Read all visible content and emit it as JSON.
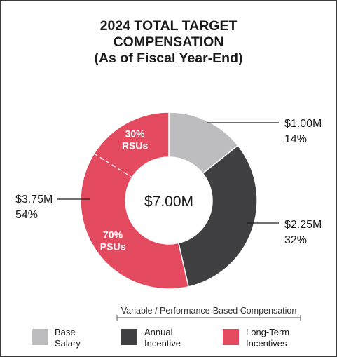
{
  "title": [
    "2024 TOTAL TARGET",
    "COMPENSATION",
    "(As of Fiscal Year-End)"
  ],
  "colors": {
    "base": "#bdbdbf",
    "annual": "#404042",
    "ltip": "#e34a60",
    "text": "#1a1a1a"
  },
  "chart_data": {
    "type": "pie",
    "title": "2024 TOTAL TARGET COMPENSATION (As of Fiscal Year-End)",
    "center_label": "$7.00M",
    "slices": [
      {
        "name": "Base Salary",
        "value": 1.0,
        "value_label": "$1.00M",
        "percent_label": "14%"
      },
      {
        "name": "Annual Incentive",
        "value": 2.25,
        "value_label": "$2.25M",
        "percent_label": "32%"
      },
      {
        "name": "Long-Term Incentives",
        "value": 3.75,
        "value_label": "$3.75M",
        "percent_label": "54%"
      }
    ],
    "ltip_split": [
      {
        "label": "30%",
        "sublabel": "RSUs",
        "percent": 30
      },
      {
        "label": "70%",
        "sublabel": "PSUs",
        "percent": 70
      }
    ],
    "legend_group_label": "Variable / Performance-Based Compensation",
    "legend": [
      {
        "line1": "Base",
        "line2": "Salary"
      },
      {
        "line1": "Annual",
        "line2": "Incentive"
      },
      {
        "line1": "Long-Term",
        "line2": "Incentives"
      }
    ]
  }
}
